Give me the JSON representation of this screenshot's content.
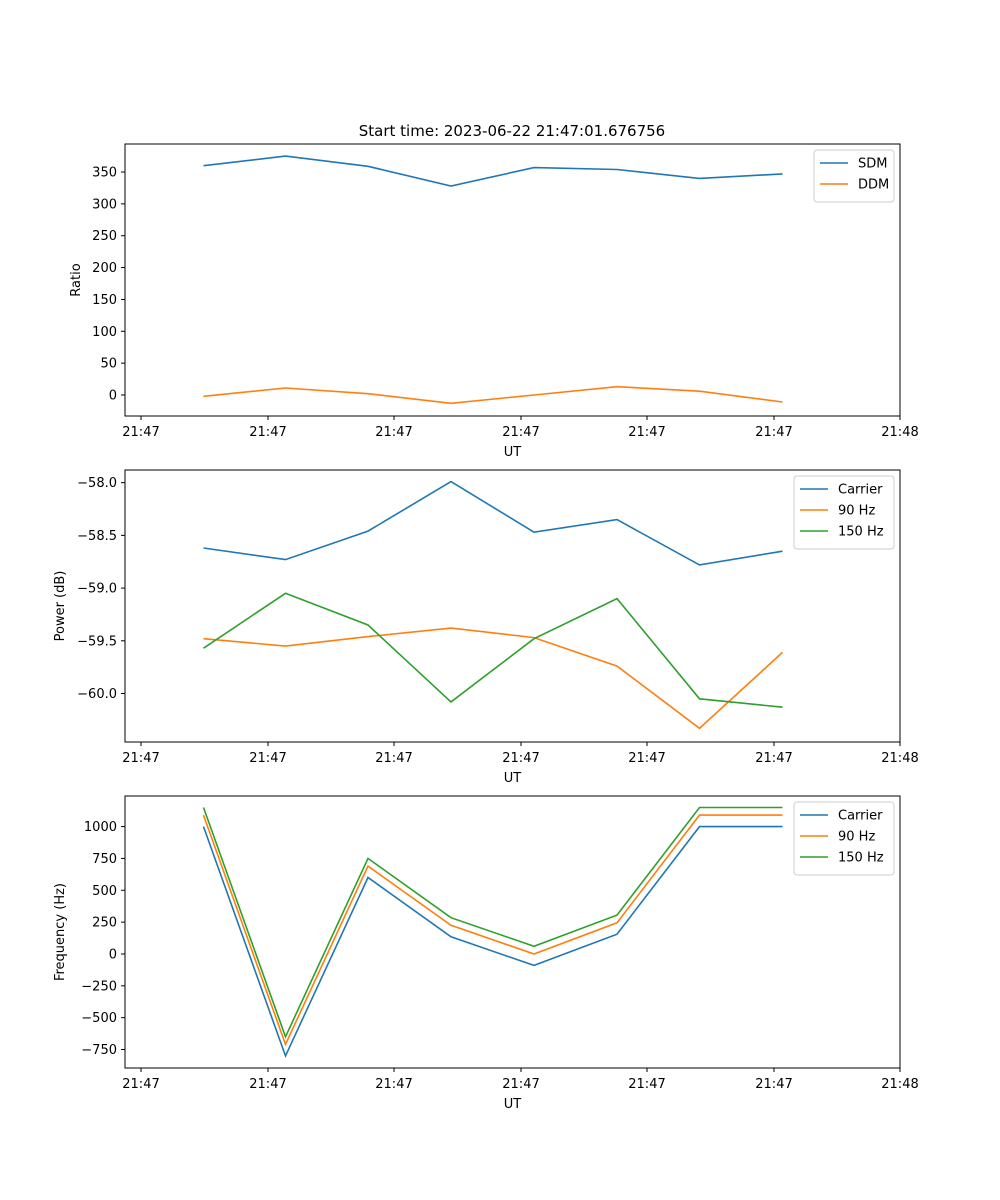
{
  "figure": {
    "title": "Start time: 2023-06-22 21:47:01.676756"
  },
  "colors": {
    "blue": "#1f77b4",
    "orange": "#ff7f0e",
    "green": "#2ca02c"
  },
  "chart_data": [
    {
      "type": "line",
      "title": "Start time: 2023-06-22 21:47:01.676756",
      "xlabel": "UT",
      "ylabel": "Ratio",
      "xtick_labels": [
        "21:47",
        "21:47",
        "21:47",
        "21:47",
        "21:47",
        "21:47",
        "21:48"
      ],
      "ylim": [
        -33,
        394
      ],
      "yticks": [
        0,
        50,
        100,
        150,
        200,
        250,
        300,
        350
      ],
      "grid": false,
      "legend_position": "upper right",
      "series": [
        {
          "name": "SDM",
          "color": "#1f77b4",
          "values": [
            360,
            375,
            359,
            328,
            357,
            354,
            340,
            347
          ]
        },
        {
          "name": "DDM",
          "color": "#ff7f0e",
          "values": [
            -2,
            11,
            2,
            -13,
            0,
            13,
            6,
            -11
          ]
        }
      ]
    },
    {
      "type": "line",
      "title": "",
      "xlabel": "UT",
      "ylabel": "Power (dB)",
      "xtick_labels": [
        "21:47",
        "21:47",
        "21:47",
        "21:47",
        "21:47",
        "21:47",
        "21:48"
      ],
      "ylim": [
        -60.46,
        -57.88
      ],
      "yticks": [
        -60.0,
        -59.5,
        -59.0,
        -58.5,
        -58.0
      ],
      "ytick_labels": [
        "−60.0",
        "−59.5",
        "−59.0",
        "−58.5",
        "−58.0"
      ],
      "grid": false,
      "legend_position": "upper right",
      "series": [
        {
          "name": "Carrier",
          "color": "#1f77b4",
          "values": [
            -58.62,
            -58.73,
            -58.46,
            -57.99,
            -58.47,
            -58.35,
            -58.78,
            -58.65
          ]
        },
        {
          "name": "90 Hz",
          "color": "#ff7f0e",
          "values": [
            -59.48,
            -59.55,
            -59.46,
            -59.38,
            -59.47,
            -59.74,
            -60.33,
            -59.61
          ]
        },
        {
          "name": "150 Hz",
          "color": "#2ca02c",
          "values": [
            -59.57,
            -59.05,
            -59.35,
            -60.08,
            -59.48,
            -59.1,
            -60.05,
            -60.13
          ]
        }
      ]
    },
    {
      "type": "line",
      "title": "",
      "xlabel": "UT",
      "ylabel": "Frequency (Hz)",
      "xtick_labels": [
        "21:47",
        "21:47",
        "21:47",
        "21:47",
        "21:47",
        "21:47",
        "21:48"
      ],
      "ylim": [
        -895,
        1240
      ],
      "yticks": [
        -750,
        -500,
        -250,
        0,
        250,
        500,
        750,
        1000
      ],
      "ytick_labels": [
        "−750",
        "−500",
        "−250",
        "0",
        "250",
        "500",
        "750",
        "1000"
      ],
      "grid": false,
      "legend_position": "upper right",
      "series": [
        {
          "name": "Carrier",
          "color": "#1f77b4",
          "values": [
            1000,
            -800,
            600,
            135,
            -90,
            155,
            1000,
            1000
          ]
        },
        {
          "name": "90 Hz",
          "color": "#ff7f0e",
          "values": [
            1090,
            -710,
            690,
            225,
            0,
            245,
            1090,
            1090
          ]
        },
        {
          "name": "150 Hz",
          "color": "#2ca02c",
          "values": [
            1150,
            -650,
            750,
            285,
            60,
            305,
            1150,
            1150
          ]
        }
      ]
    }
  ]
}
